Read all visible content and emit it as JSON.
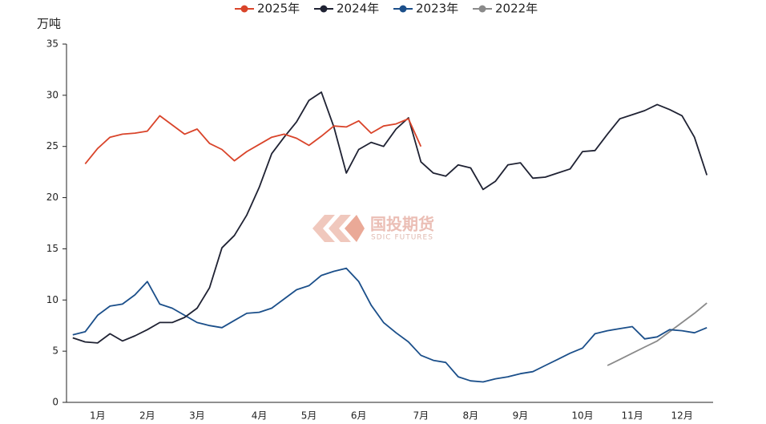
{
  "chart_data": {
    "type": "line",
    "unit_label": "万吨",
    "watermark": "国投期货",
    "watermark_sub": "SDIC FUTURES",
    "categories": [
      null,
      null,
      "1月",
      null,
      null,
      null,
      "2月",
      null,
      null,
      null,
      "3月",
      null,
      null,
      null,
      null,
      "4月",
      null,
      null,
      null,
      "5月",
      null,
      null,
      null,
      "6月",
      null,
      null,
      null,
      null,
      "7月",
      null,
      null,
      null,
      "8月",
      null,
      null,
      null,
      "9月",
      null,
      null,
      null,
      null,
      "10月",
      null,
      null,
      null,
      "11月",
      null,
      null,
      null,
      "12月",
      null,
      null
    ],
    "series": [
      {
        "name": "2025年",
        "color": "#d9442a",
        "values": [
          null,
          23.3,
          24.8,
          25.9,
          26.2,
          26.3,
          26.5,
          28.0,
          27.1,
          26.2,
          26.7,
          25.3,
          24.7,
          23.6,
          24.5,
          25.2,
          25.9,
          26.2,
          25.8,
          25.1,
          26.0,
          27.0,
          26.9,
          27.5,
          26.3,
          27.0,
          27.2,
          27.7,
          25.0,
          null,
          null,
          null,
          null,
          null,
          null,
          null,
          null,
          null,
          null,
          null,
          null,
          null,
          null,
          null,
          null,
          null,
          null,
          null,
          null,
          null,
          null,
          null
        ]
      },
      {
        "name": "2024年",
        "color": "#1f2233",
        "values": [
          6.3,
          5.9,
          5.8,
          6.7,
          6.0,
          6.5,
          7.1,
          7.8,
          7.8,
          8.3,
          9.2,
          11.2,
          15.1,
          16.3,
          18.3,
          21.0,
          24.3,
          25.9,
          27.4,
          29.5,
          30.3,
          26.9,
          22.4,
          24.7,
          25.4,
          25.0,
          26.7,
          27.8,
          23.5,
          22.4,
          22.1,
          23.2,
          22.9,
          20.8,
          21.6,
          23.2,
          23.4,
          21.9,
          22.0,
          22.4,
          22.8,
          24.5,
          24.6,
          26.2,
          27.7,
          28.1,
          28.5,
          29.1,
          28.6,
          28.0,
          25.9,
          22.2
        ]
      },
      {
        "name": "2023年",
        "color": "#1b4f8a",
        "values": [
          6.6,
          6.9,
          8.5,
          9.4,
          9.6,
          10.5,
          11.8,
          9.6,
          9.2,
          8.5,
          7.8,
          7.5,
          7.3,
          8.0,
          8.7,
          8.8,
          9.2,
          10.1,
          11.0,
          11.4,
          12.4,
          12.8,
          13.1,
          11.8,
          9.5,
          7.8,
          6.8,
          5.9,
          4.6,
          4.1,
          3.9,
          2.5,
          2.1,
          2.0,
          2.3,
          2.5,
          2.8,
          3.0,
          3.6,
          4.2,
          4.8,
          5.3,
          6.7,
          7.0,
          7.2,
          7.4,
          6.2,
          6.4,
          7.1,
          7.0,
          6.8,
          7.3
        ]
      },
      {
        "name": "2022年",
        "color": "#8a8a8a",
        "values": [
          null,
          null,
          null,
          null,
          null,
          null,
          null,
          null,
          null,
          null,
          null,
          null,
          null,
          null,
          null,
          null,
          null,
          null,
          null,
          null,
          null,
          null,
          null,
          null,
          null,
          null,
          null,
          null,
          null,
          null,
          null,
          null,
          null,
          null,
          null,
          null,
          null,
          null,
          null,
          null,
          null,
          null,
          null,
          3.6,
          4.2,
          4.8,
          5.4,
          6.0,
          6.9,
          7.8,
          8.7,
          9.7
        ]
      }
    ],
    "ylim": [
      0,
      35
    ],
    "yticks": [
      0,
      5,
      10,
      15,
      20,
      25,
      30,
      35
    ],
    "grid": false
  }
}
